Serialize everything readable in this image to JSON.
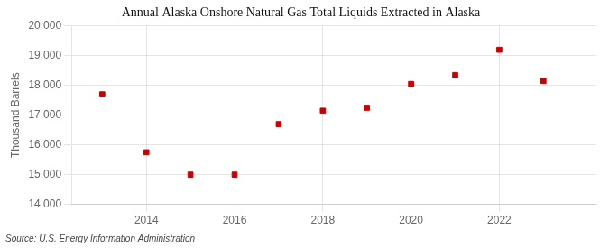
{
  "chart_data": {
    "type": "scatter",
    "title": "Annual Alaska Onshore Natural Gas Total Liquids Extracted in Alaska",
    "y_label": "Thousand Barrels",
    "source": "Source: U.S. Energy Information Administration",
    "x": [
      2013,
      2014,
      2015,
      2016,
      2017,
      2018,
      2019,
      2020,
      2021,
      2022,
      2023
    ],
    "values": [
      17700,
      15750,
      15000,
      15000,
      16700,
      17150,
      17250,
      18050,
      18350,
      19200,
      18150
    ],
    "color": "#cc0000",
    "marker": "square",
    "xlim": [
      2012.3,
      2024.2
    ],
    "xticks": [
      2014,
      2016,
      2018,
      2020,
      2022
    ],
    "ylim": [
      14000,
      20000
    ],
    "yticks": [
      {
        "value": 14000,
        "label": "14,000"
      },
      {
        "value": 15000,
        "label": "15,000"
      },
      {
        "value": 16000,
        "label": "16,000"
      },
      {
        "value": 17000,
        "label": "17,000"
      },
      {
        "value": 18000,
        "label": "18,000"
      },
      {
        "value": 19000,
        "label": "19,000"
      },
      {
        "value": 20000,
        "label": "20,000"
      }
    ],
    "grid": true
  }
}
